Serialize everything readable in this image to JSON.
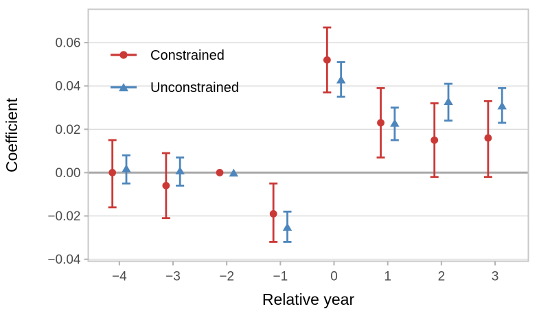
{
  "chart_data": {
    "type": "scatter",
    "subtype": "coefficient-event-study-with-error-bars",
    "title": "",
    "xlabel": "Relative year",
    "ylabel": "Coefficient",
    "x_ticks": [
      -4,
      -3,
      -2,
      -1,
      0,
      1,
      2,
      3
    ],
    "x_tick_labels": [
      "−4",
      "−3",
      "−2",
      "−1",
      "0",
      "1",
      "2",
      "3"
    ],
    "y_ticks": [
      -0.04,
      -0.02,
      0.0,
      0.02,
      0.04,
      0.06
    ],
    "y_tick_labels": [
      "−0.04",
      "−0.02",
      "0.00",
      "0.02",
      "0.04",
      "0.06"
    ],
    "xlim": [
      -4.58,
      3.62
    ],
    "ylim": [
      -0.0409,
      0.0754
    ],
    "grid": "horizontal-only",
    "zero_line": {
      "y": 0,
      "color": "#A8A8A8"
    },
    "legend": {
      "position": "inside-top-left"
    },
    "reference_year": -2,
    "series": [
      {
        "name": "Constrained",
        "marker": "circle",
        "color": "#CB3937",
        "x_offset": -0.13,
        "x": [
          -4,
          -3,
          -2,
          -1,
          0,
          1,
          2,
          3
        ],
        "y": [
          0.0,
          -0.006,
          0.0,
          -0.019,
          0.052,
          0.023,
          0.015,
          0.016
        ],
        "ci_low": [
          -0.016,
          -0.021,
          0.0,
          -0.032,
          0.037,
          0.007,
          -0.002,
          -0.002
        ],
        "ci_high": [
          0.015,
          0.009,
          0.0,
          -0.005,
          0.067,
          0.039,
          0.032,
          0.033
        ]
      },
      {
        "name": "Unconstrained",
        "marker": "triangle",
        "color": "#4D86BC",
        "x_offset": 0.13,
        "x": [
          -4,
          -3,
          -2,
          -1,
          0,
          1,
          2,
          3
        ],
        "y": [
          0.002,
          0.001,
          0.0,
          -0.025,
          0.043,
          0.023,
          0.033,
          0.031
        ],
        "ci_low": [
          -0.005,
          -0.006,
          0.0,
          -0.032,
          0.035,
          0.015,
          0.024,
          0.023
        ],
        "ci_high": [
          0.008,
          0.007,
          0.0,
          -0.018,
          0.051,
          0.03,
          0.041,
          0.039
        ]
      }
    ],
    "styles": {
      "background": "#FFFFFF",
      "grid_color": "#DCDCDC",
      "border_color": "#C8C8C8",
      "tick_color": "#B3B3B3",
      "tick_label_color": "#4D4D4D",
      "axis_title_color": "#000000"
    }
  }
}
